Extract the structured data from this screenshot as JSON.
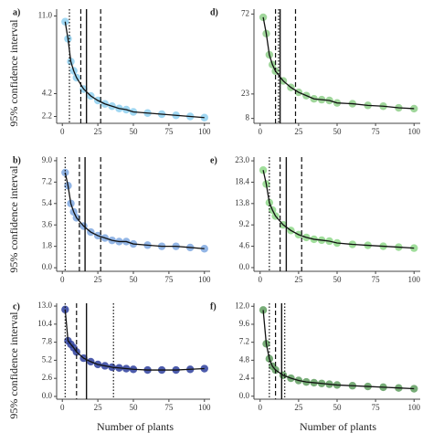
{
  "chart_data": [
    {
      "type": "scatter",
      "label": "a)",
      "color": "#8fd0f0",
      "x": [
        2,
        4,
        6,
        8,
        10,
        15,
        20,
        25,
        30,
        35,
        40,
        45,
        50,
        60,
        70,
        80,
        90,
        100
      ],
      "values": [
        10.5,
        9,
        7,
        6.2,
        5.6,
        4.6,
        4.0,
        3.6,
        3.3,
        3.1,
        2.9,
        2.8,
        2.6,
        2.5,
        2.4,
        2.3,
        2.2,
        2.1
      ],
      "xlim": [
        -4,
        104
      ],
      "ylim": [
        1.6,
        11.6
      ],
      "xticks": [
        0,
        25,
        50,
        75,
        100
      ],
      "yticks": [
        2.2,
        4.2,
        {
          "value": 11.0,
          "label": "11.0"
        }
      ],
      "vlines": [
        {
          "x": 5,
          "style": "dotted"
        },
        {
          "x": 13,
          "style": "dashed"
        },
        {
          "x": 17,
          "style": "solid"
        },
        {
          "x": 27,
          "style": "dashed"
        }
      ]
    },
    {
      "type": "scatter",
      "label": "d)",
      "color": "#8fcf8a",
      "x": [
        2,
        4,
        6,
        8,
        10,
        15,
        20,
        25,
        30,
        35,
        40,
        45,
        50,
        60,
        70,
        80,
        90,
        100
      ],
      "values": [
        70,
        60,
        47,
        41,
        37,
        31,
        27,
        24,
        22,
        20,
        19.5,
        19,
        17.5,
        17,
        16,
        15.5,
        14.5,
        14
      ],
      "xlim": [
        -4,
        104
      ],
      "ylim": [
        5,
        75
      ],
      "xticks": [
        0,
        25,
        50,
        75,
        100
      ],
      "yticks": [
        8,
        23,
        72
      ],
      "vlines": [
        {
          "x": 10,
          "style": "dashed"
        },
        {
          "x": 12,
          "style": "dotted"
        },
        {
          "x": 13,
          "style": "solid"
        },
        {
          "x": 23,
          "style": "dashed"
        }
      ]
    },
    {
      "type": "scatter",
      "label": "b)",
      "color": "#7fa8e0",
      "x": [
        2,
        4,
        6,
        8,
        10,
        15,
        20,
        25,
        30,
        35,
        40,
        45,
        50,
        60,
        70,
        80,
        90,
        100
      ],
      "values": [
        8,
        6.9,
        5.4,
        4.7,
        4.2,
        3.5,
        3.0,
        2.7,
        2.5,
        2.3,
        2.2,
        2.2,
        2.0,
        1.9,
        1.8,
        1.8,
        1.7,
        1.6
      ],
      "xlim": [
        -4,
        104
      ],
      "ylim": [
        -0.3,
        9.3
      ],
      "xticks": [
        0,
        25,
        50,
        75,
        100
      ],
      "yticks": [
        {
          "value": 0,
          "label": "0.0"
        },
        1.8,
        3.6,
        5.4,
        7.2,
        {
          "value": 9,
          "label": "9.0"
        }
      ],
      "vlines": [
        {
          "x": 2,
          "style": "dotted"
        },
        {
          "x": 12,
          "style": "dashed"
        },
        {
          "x": 16,
          "style": "solid"
        },
        {
          "x": 27,
          "style": "dashed"
        }
      ]
    },
    {
      "type": "scatter",
      "label": "e)",
      "color": "#8fd88a",
      "x": [
        2,
        4,
        6,
        8,
        10,
        15,
        20,
        25,
        30,
        35,
        40,
        45,
        50,
        60,
        70,
        80,
        90,
        100
      ],
      "values": [
        21,
        18,
        14,
        12.4,
        11.1,
        9.2,
        8,
        7.1,
        6.5,
        6.1,
        5.9,
        5.7,
        5.3,
        5,
        4.8,
        4.6,
        4.4,
        4.2
      ],
      "xlim": [
        -4,
        104
      ],
      "ylim": [
        -0.8,
        23.8
      ],
      "xticks": [
        0,
        25,
        50,
        75,
        100
      ],
      "yticks": [
        {
          "value": 0,
          "label": "0.0"
        },
        4.6,
        9.2,
        13.8,
        18.4,
        {
          "value": 23,
          "label": "23.0"
        }
      ],
      "vlines": [
        {
          "x": 6,
          "style": "dotted"
        },
        {
          "x": 13,
          "style": "dashed"
        },
        {
          "x": 17,
          "style": "solid"
        },
        {
          "x": 27,
          "style": "dashed"
        }
      ]
    },
    {
      "type": "scatter",
      "label": "c)",
      "color": "#2e3f9e",
      "x": [
        2,
        4,
        6,
        8,
        10,
        15,
        20,
        25,
        30,
        35,
        40,
        45,
        50,
        60,
        70,
        80,
        90,
        100
      ],
      "values": [
        12.5,
        8,
        7.5,
        7,
        6.4,
        5.5,
        5,
        4.6,
        4.4,
        4.2,
        4.1,
        4,
        3.9,
        3.8,
        3.8,
        3.8,
        3.9,
        4
      ],
      "xlim": [
        -4,
        104
      ],
      "ylim": [
        -0.4,
        13.4
      ],
      "xticks": [
        0,
        25,
        50,
        75,
        100
      ],
      "yticks": [
        {
          "value": 0,
          "label": "0.0"
        },
        2.6,
        5.2,
        7.8,
        10.4,
        {
          "value": 13,
          "label": "13.0"
        }
      ],
      "vlines": [
        {
          "x": 2,
          "style": "dotted"
        },
        {
          "x": 10,
          "style": "dashed"
        },
        {
          "x": 17,
          "style": "solid"
        },
        {
          "x": 36,
          "style": "dotted"
        }
      ]
    },
    {
      "type": "scatter",
      "label": "f)",
      "color": "#5f9e5f",
      "x": [
        2,
        4,
        6,
        8,
        10,
        15,
        20,
        25,
        30,
        35,
        40,
        45,
        50,
        60,
        70,
        80,
        90,
        100
      ],
      "values": [
        11.5,
        7,
        5,
        4,
        3.5,
        2.8,
        2.4,
        2.1,
        1.9,
        1.8,
        1.7,
        1.6,
        1.5,
        1.4,
        1.3,
        1.2,
        1.1,
        1.0
      ],
      "xlim": [
        -4,
        104
      ],
      "ylim": [
        -0.4,
        12.4
      ],
      "xticks": [
        0,
        25,
        50,
        75,
        100
      ],
      "yticks": [
        {
          "value": 0,
          "label": "0.0"
        },
        2.4,
        4.8,
        7.2,
        9.6,
        {
          "value": 12,
          "label": "12.0"
        }
      ],
      "vlines": [
        {
          "x": 6,
          "style": "dotted"
        },
        {
          "x": 10,
          "style": "dashed"
        },
        {
          "x": 14,
          "style": "solid"
        },
        {
          "x": 16,
          "style": "dotted"
        }
      ]
    }
  ],
  "y_label": "95% confidence interval",
  "x_label": "Number of plants"
}
